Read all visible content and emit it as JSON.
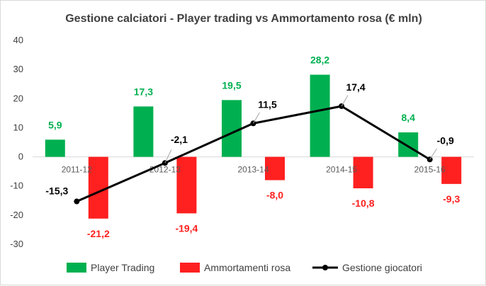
{
  "chart_data": {
    "type": "bar",
    "title": "Gestione calciatori  - Player trading vs Ammortamento  rosa (€ mln)",
    "categories": [
      "2011-12",
      "2012-13",
      "2013-14",
      "2014-15",
      "2015-16"
    ],
    "ylim": [
      -30,
      40
    ],
    "yticks": [
      40,
      30,
      20,
      10,
      0,
      -10,
      -20,
      -30
    ],
    "grid": false,
    "legend_position": "bottom",
    "series": [
      {
        "name": "Player Trading",
        "kind": "bar",
        "color": "#00B050",
        "values": [
          5.9,
          17.3,
          19.5,
          28.2,
          8.4
        ],
        "labels": [
          "5,9",
          "17,3",
          "19,5",
          "28,2",
          "8,4"
        ]
      },
      {
        "name": "Ammortamenti rosa",
        "kind": "bar",
        "color": "#FF2020",
        "values": [
          -21.2,
          -19.4,
          -8.0,
          -10.8,
          -9.3
        ],
        "labels": [
          "-21,2",
          "-19,4",
          "-8,0",
          "-10,8",
          "-9,3"
        ]
      },
      {
        "name": "Gestione giocatori",
        "kind": "line",
        "color": "#000000",
        "values": [
          -15.3,
          -2.1,
          11.5,
          17.4,
          -0.9
        ],
        "labels": [
          "-15,3",
          "-2,1",
          "11,5",
          "17,4",
          "-0,9"
        ]
      }
    ]
  }
}
